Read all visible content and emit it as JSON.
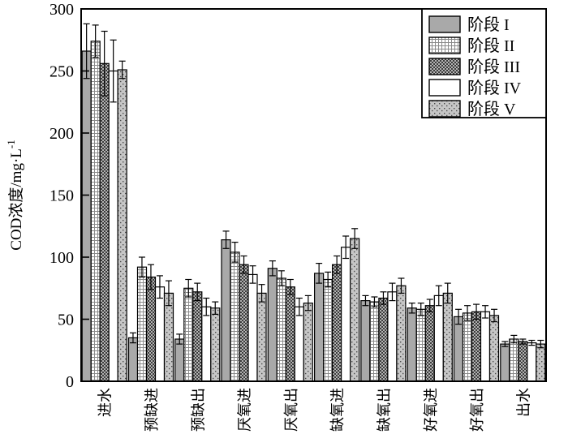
{
  "chart_data": {
    "type": "bar",
    "title": "",
    "xlabel": "",
    "ylabel": "COD浓度/mg·L⁻¹",
    "ylabel_base": "COD浓度/mg·L",
    "ylabel_superscript": "-1",
    "ylim": [
      0,
      300
    ],
    "yticks": [
      0,
      50,
      100,
      150,
      200,
      250,
      300
    ],
    "grid": false,
    "legend_position": "top-right-inside",
    "error_bars": true,
    "categories": [
      "进水",
      "预缺进",
      "预缺出",
      "厌氧进",
      "厌氧出",
      "缺氧进",
      "缺氧出",
      "好氧进",
      "好氧出",
      "出水"
    ],
    "series": [
      {
        "name": "阶段 I",
        "fill": "gray",
        "values": [
          266,
          35,
          34,
          114,
          91,
          87,
          65,
          59,
          52,
          30
        ],
        "errors": [
          22,
          4,
          4,
          7,
          6,
          8,
          4,
          4,
          6,
          2
        ]
      },
      {
        "name": "阶段 II",
        "fill": "grid",
        "values": [
          274,
          92,
          75,
          104,
          83,
          82,
          64,
          58,
          55,
          34
        ],
        "errors": [
          13,
          8,
          7,
          8,
          6,
          6,
          4,
          5,
          6,
          3
        ]
      },
      {
        "name": "阶段 III",
        "fill": "checker",
        "values": [
          256,
          84,
          72,
          94,
          76,
          94,
          67,
          61,
          56,
          32
        ],
        "errors": [
          26,
          10,
          7,
          7,
          6,
          7,
          5,
          5,
          6,
          2
        ]
      },
      {
        "name": "阶段 IV",
        "fill": "white",
        "values": [
          250,
          76,
          60,
          86,
          60,
          108,
          72,
          69,
          56,
          31
        ],
        "errors": [
          25,
          9,
          7,
          7,
          7,
          9,
          7,
          8,
          5,
          2
        ]
      },
      {
        "name": "阶段 V",
        "fill": "dots",
        "values": [
          251,
          71,
          59,
          71,
          63,
          115,
          77,
          71,
          53,
          30
        ],
        "errors": [
          7,
          10,
          5,
          7,
          6,
          8,
          6,
          8,
          5,
          3
        ]
      }
    ],
    "colors": {
      "background": "#ffffff",
      "outline": "#000000",
      "stage1_fill": "#a9a9a9",
      "stage2_bg": "#ffffff",
      "stage2_grid_line": "#8a8a8a",
      "stage3_bg": "#b3b3b3",
      "stage3_dot": "#3c3c3c",
      "stage4_fill": "#ffffff",
      "stage5_bg": "#c6c6c6",
      "stage5_dot": "#4a4a4a"
    }
  }
}
